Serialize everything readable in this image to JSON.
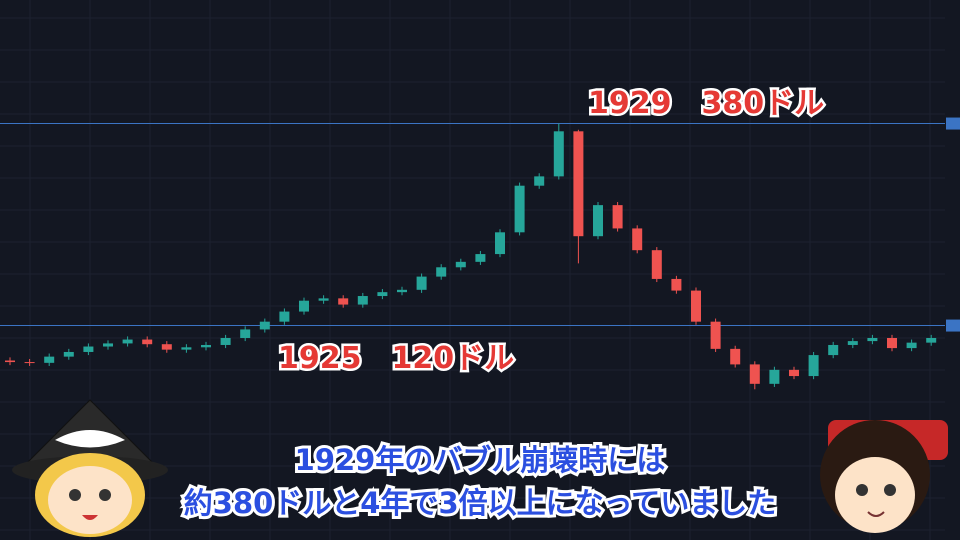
{
  "chart_data": {
    "type": "candlestick",
    "ylim": [
      -156,
      539
    ],
    "price_lines": [
      380,
      120
    ],
    "line_color": "#3b74c4",
    "up_color": "#26a69a",
    "down_color": "#ef5350",
    "open": [
      75,
      73,
      72,
      80,
      86,
      93,
      97,
      102,
      96,
      89,
      92,
      95,
      104,
      115,
      125,
      138,
      152,
      155,
      147,
      158,
      163,
      166,
      183,
      195,
      202,
      212,
      240,
      300,
      312,
      370,
      235,
      275,
      245,
      217,
      180,
      165,
      125,
      90,
      70,
      45,
      63,
      55,
      82,
      95,
      100,
      104,
      91,
      98
    ],
    "high": [
      79,
      77,
      84,
      90,
      97,
      101,
      106,
      106,
      100,
      96,
      99,
      108,
      119,
      129,
      142,
      156,
      159,
      159,
      162,
      167,
      170,
      187,
      199,
      206,
      216,
      244,
      304,
      316,
      380,
      372,
      279,
      279,
      249,
      221,
      184,
      169,
      129,
      94,
      74,
      67,
      67,
      86,
      99,
      104,
      108,
      108,
      102,
      108
    ],
    "low": [
      69,
      68,
      68,
      76,
      82,
      89,
      93,
      92,
      85,
      85,
      88,
      91,
      100,
      111,
      121,
      134,
      148,
      143,
      143,
      154,
      159,
      162,
      179,
      191,
      198,
      208,
      236,
      296,
      308,
      200,
      231,
      241,
      213,
      176,
      161,
      121,
      86,
      66,
      38,
      41,
      51,
      51,
      78,
      91,
      96,
      87,
      87,
      94
    ],
    "close": [
      73,
      72,
      80,
      86,
      93,
      97,
      102,
      96,
      89,
      92,
      95,
      104,
      115,
      125,
      138,
      152,
      155,
      147,
      158,
      163,
      166,
      183,
      195,
      202,
      212,
      240,
      300,
      312,
      370,
      235,
      275,
      245,
      217,
      180,
      165,
      125,
      90,
      70,
      45,
      63,
      55,
      82,
      95,
      100,
      104,
      91,
      98,
      104
    ],
    "annotations": [
      "1929　380ドル",
      "1925　120ドル"
    ]
  },
  "subtitle": [
    "1929年のバブル崩壊時には",
    "約380ドルと4年で3倍以上になっていました"
  ]
}
